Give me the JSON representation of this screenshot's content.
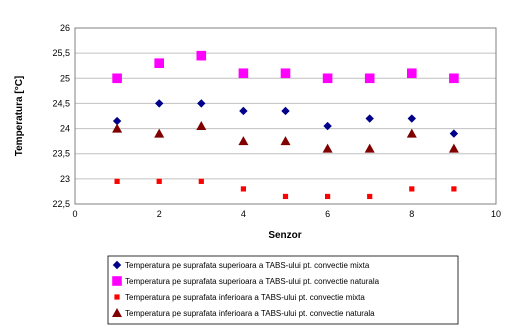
{
  "chart_data": {
    "type": "scatter",
    "xlabel": "Senzor",
    "ylabel": "Temperatura [°C]",
    "xlim": [
      0,
      10
    ],
    "ylim": [
      22.5,
      26
    ],
    "x_ticks": [
      "0",
      "2",
      "4",
      "6",
      "8",
      "10"
    ],
    "y_ticks": [
      "22,5",
      "23",
      "23,5",
      "24",
      "24,5",
      "25",
      "25,5",
      "26"
    ],
    "grid": "horizontal",
    "legend_position": "bottom",
    "x": [
      1,
      2,
      3,
      4,
      5,
      6,
      7,
      8,
      9
    ],
    "series": [
      {
        "name": "Temperatura pe suprafata superioara a TABS-ului pt. convectie mixta",
        "marker": "diamond",
        "color": "#00008B",
        "values": [
          24.15,
          24.5,
          24.5,
          24.35,
          24.35,
          24.05,
          24.2,
          24.2,
          23.9
        ]
      },
      {
        "name": "Temperatura pe suprafata superioara a TABS-ului pt. convectie naturala",
        "marker": "square",
        "color": "#FF00FF",
        "values": [
          25.0,
          25.3,
          25.45,
          25.1,
          25.1,
          25.0,
          25.0,
          25.1,
          25.0
        ]
      },
      {
        "name": "Temperatura pe suprafata inferioara a TABS-ului pt. convectie mixta",
        "marker": "small-square",
        "color": "#FF0000",
        "values": [
          22.95,
          22.95,
          22.95,
          22.8,
          22.65,
          22.65,
          22.65,
          22.8,
          22.8
        ]
      },
      {
        "name": "Temperatura pe suprafata inferioara a TABS-ului pt. convectie naturala",
        "marker": "triangle",
        "color": "#800000",
        "values": [
          24.0,
          23.9,
          24.05,
          23.75,
          23.75,
          23.6,
          23.6,
          23.9,
          23.6
        ]
      }
    ]
  }
}
